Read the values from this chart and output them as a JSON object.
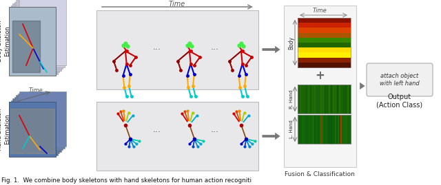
{
  "fig_width": 6.4,
  "fig_height": 2.69,
  "dpi": 100,
  "bg_color": "#ffffff",
  "caption": "Fig. 1.  We combine body skeletons with hand skeletons for human action recogniti",
  "body_stack_colors": [
    "#c8ccd4",
    "#bcc0c8",
    "#b0b4bc",
    "#a4a8b0",
    "#9899a4"
  ],
  "hand_stack_colors": [
    "#8899aa",
    "#7788a0",
    "#667799",
    "#556688",
    "#445577"
  ],
  "body_photo_bg": "#8899aa",
  "hand_photo_bg": "#5577aa",
  "mid_panel_bg": "#e8e8ea",
  "mid_panel_ec": "#bbbbbb",
  "right_box_bg": "#f5f5f5",
  "right_box_ec": "#cccccc",
  "body_bands": [
    "#881100",
    "#cc2200",
    "#dd4400",
    "#aa5500",
    "#338800",
    "#226600",
    "#ffdd00",
    "#ffee00",
    "#882200",
    "#551100"
  ],
  "rhand_color": "#226600",
  "lhand_color": "#226611",
  "fusion_label": "Fusion & Classification",
  "output_label": "Output\n(Action Class)",
  "action_label": "attach object\nwith left hand",
  "body_label_rot": "Body Skeleton\nEstimation",
  "hand_label_rot": "Hand Skeleton\nEstimation"
}
